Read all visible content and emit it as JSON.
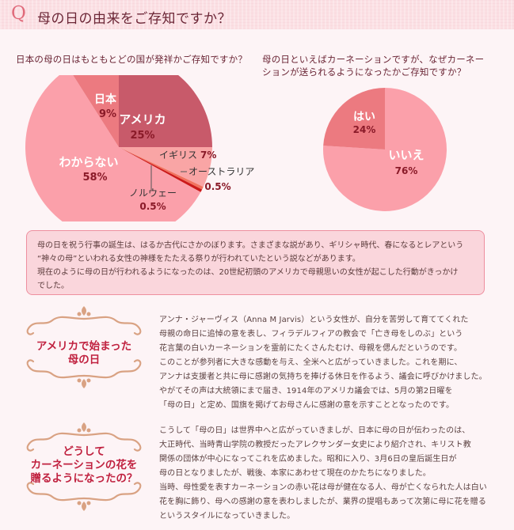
{
  "header": {
    "q_mark": "Q",
    "title": "母の日の由来をご存知ですか？"
  },
  "question1": {
    "text": "日本の母の日はもともとどの国が発祥かご存知ですか？"
  },
  "question2": {
    "lines": [
      "母の日といえばカーネーションですが、なぜカーネー",
      "ションが送られるようになったかご存知ですか？"
    ]
  },
  "chart_data": [
    {
      "type": "pie",
      "title": "日本の母の日はもともとどの国が発祥かご存知ですか？",
      "categories": [
        "アメリカ",
        "イギリス",
        "オーストラリア",
        "ノルウェー",
        "わからない",
        "日本"
      ],
      "values": [
        25,
        7,
        0.5,
        0.5,
        58,
        9
      ],
      "labels": [
        "25%",
        "7%",
        "0.5%",
        "0.5%",
        "58%",
        "9%"
      ],
      "colors": [
        "#c85a6a",
        "#f9a5a5",
        "#f2735f",
        "#cc1a1a",
        "#fba0aa",
        "#ec7a80"
      ],
      "start_angle": "12 o'clock, clockwise"
    },
    {
      "type": "pie",
      "title": "母の日といえばカーネーションですが、なぜカーネーションが送られるようになったかご存知ですか？",
      "categories": [
        "いいえ",
        "はい"
      ],
      "values": [
        76,
        24
      ],
      "labels": [
        "76%",
        "24%"
      ],
      "colors": [
        "#fba0aa",
        "#ec7a80"
      ],
      "start_angle": "12 o'clock, clockwise"
    }
  ],
  "pie1_labels": {
    "america": {
      "name": "アメリカ",
      "pct": "25%"
    },
    "japan": {
      "name": "日本",
      "pct": "9%"
    },
    "unknown": {
      "name": "わからない",
      "pct": "58%"
    },
    "uk": {
      "name": "イギリス",
      "pct": "7%"
    },
    "australia": {
      "name": "オーストラリア",
      "pct": "0.5%"
    },
    "norway": {
      "name": "ノルウェー",
      "pct": "0.5%"
    }
  },
  "pie2_labels": {
    "yes": {
      "name": "はい",
      "pct": "24%"
    },
    "no": {
      "name": "いいえ",
      "pct": "76%"
    }
  },
  "infobox": {
    "lines": [
      "母の日を祝う行事の誕生は、はるか古代にさかのぼります。さまざまな説があり、ギリシャ時代、春になるとレアという",
      "“神々の母”といわれる女性の神様をたたえる祭りが行われていたという説などがあります。",
      "現在のように母の日が行われるようになったのは、20世紀初頭のアメリカで母親思いの女性が起こした行動がきっかけ",
      "でした。"
    ]
  },
  "section1": {
    "title_lines": [
      "アメリカで始まった",
      "母の日"
    ],
    "lines": [
      "アンナ・ジャーヴィス（Anna M Jarvis）という女性が、自分を苦労して育ててくれた",
      "母親の命日に追悼の意を表し、フィラデルフィアの教会で「亡き母をしのぶ」という",
      "花言葉の白いカーネーションを霊前にたくさんたむけ、母親を偲んだというのです。",
      "このことが参列者に大きな感動を与え、全米へと広がっていきました。これを期に、",
      "アンナは支援者と共に母に感謝の気持ちを捧げる休日を作るよう、議会に呼びかけました。",
      "やがてその声は大統領にまで届き、1914年のアメリカ議会では、5月の第2日曜を",
      "「母の日」と定め、国旗を掲げてお母さんに感謝の意を示すこととなったのです。"
    ]
  },
  "section2": {
    "title_lines": [
      "どうして",
      "カーネーションの花を",
      "贈るようになったの？"
    ],
    "lines": [
      "こうして「母の日」は世界中へと広がっていきましが、日本に母の日が伝わったのは、",
      "大正時代、当時青山学院の教授だったアレクサンダー女史により紹介され、キリスト教",
      "関係の団体が中心になってこれを広めました。昭和に入り、3月6日の皇后誕生日が",
      "母の日となりましたが、戦後、本家にあわせて現在のかたちになりました。",
      "当時、母性愛を表すカーネーションの赤い花は母が健在なる人、母が亡くなられた人は白い",
      "花を胸に飾り、母への感謝の意を表わしましたが、業界の提唱もあって次第に母に花を贈る",
      "というスタイルになっていきました。"
    ]
  }
}
